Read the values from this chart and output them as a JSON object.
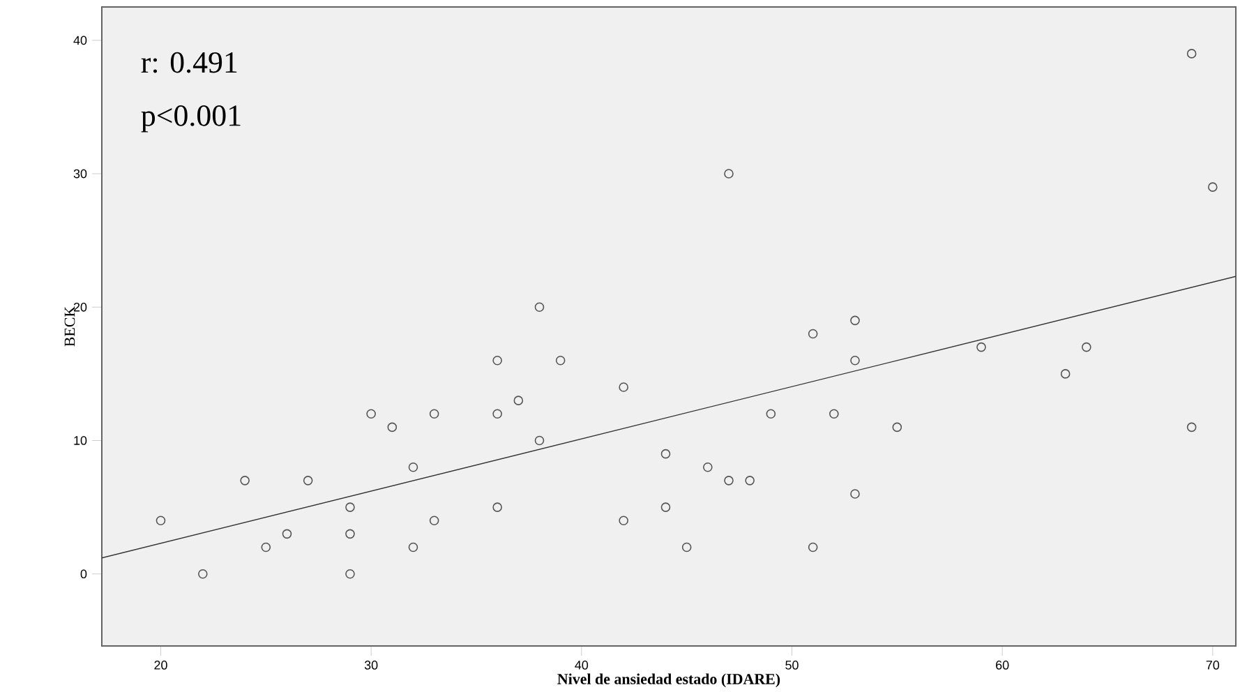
{
  "chart_data": {
    "type": "scatter",
    "xlabel": "Nivel de ansiedad estado (IDARE)",
    "ylabel": "BECK",
    "annotations": [
      "r: 0.491",
      "p<0.001"
    ],
    "xlim": [
      17.2,
      71.1
    ],
    "ylim": [
      -5.4,
      42.5
    ],
    "xticks": [
      20,
      30,
      40,
      50,
      60,
      70
    ],
    "yticks": [
      0,
      10,
      20,
      30,
      40
    ],
    "grid": false,
    "marker": "circle",
    "series": [
      {
        "type": "scatter",
        "color": "#555555",
        "x": [
          20,
          22,
          24,
          25,
          26,
          27,
          29,
          29,
          29,
          30,
          31,
          32,
          32,
          33,
          33,
          36,
          36,
          36,
          37,
          38,
          38,
          39,
          42,
          42,
          44,
          44,
          45,
          46,
          47,
          47,
          48,
          49,
          51,
          51,
          52,
          53,
          53,
          53,
          55,
          59,
          63,
          64,
          69,
          69,
          70
        ],
        "values": [
          4,
          0,
          7,
          2,
          3,
          7,
          5,
          3,
          0,
          12,
          11,
          8,
          2,
          12,
          4,
          16,
          12,
          5,
          13,
          20,
          10,
          16,
          14,
          4,
          9,
          5,
          2,
          8,
          30,
          7,
          7,
          12,
          18,
          2,
          12,
          19,
          16,
          6,
          11,
          17,
          15,
          17,
          39,
          11,
          29
        ]
      },
      {
        "type": "line",
        "color": "#333333",
        "marker": "none",
        "line_style": "solid",
        "x": [
          17.2,
          71.1
        ],
        "values": [
          1.2,
          22.3
        ]
      }
    ]
  }
}
